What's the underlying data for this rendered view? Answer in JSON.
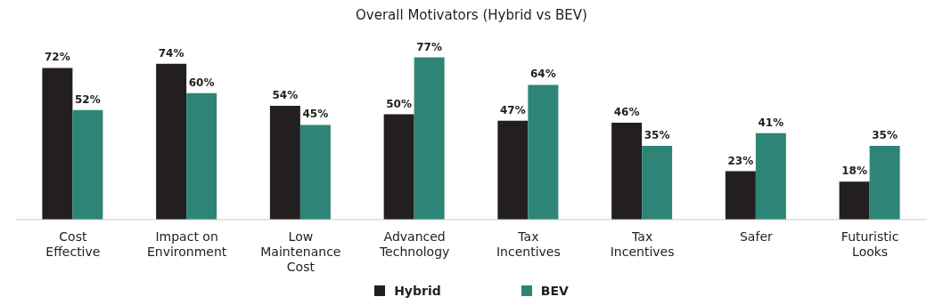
{
  "chart_data": {
    "type": "bar",
    "title": "Overall Motivators (Hybrid vs BEV)",
    "categories": [
      "Cost Effective",
      "Impact on Environment",
      "Low Maintenance Cost",
      "Advanced Technology",
      "Tax Incentives",
      "Tax Incentives",
      "Safer",
      "Futuristic Looks"
    ],
    "series": [
      {
        "name": "Hybrid",
        "color": "#231f20",
        "values": [
          72,
          74,
          54,
          50,
          47,
          46,
          23,
          18
        ],
        "value_labels": [
          "72%",
          "74%",
          "54%",
          "50%",
          "47%",
          "46%",
          "23%",
          "18%"
        ]
      },
      {
        "name": "BEV",
        "color": "#2e8577",
        "values": [
          52,
          60,
          45,
          77,
          64,
          35,
          41,
          35
        ],
        "value_labels": [
          "52%",
          "60%",
          "45%",
          "77%",
          "64%",
          "35%",
          "41%",
          "35%"
        ]
      }
    ],
    "legend": "bottom"
  }
}
